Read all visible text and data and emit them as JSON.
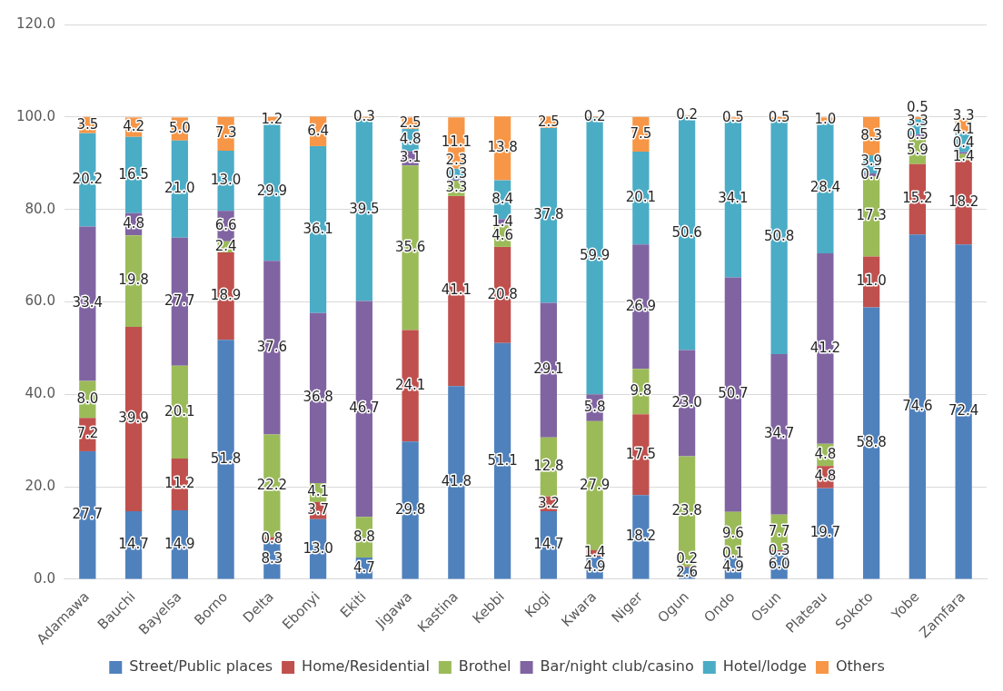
{
  "chart_data": {
    "type": "bar",
    "stacked": true,
    "categories": [
      "Adamawa",
      "Bauchi",
      "Bayelsa",
      "Borno",
      "Delta",
      "Ebonyi",
      "Ekiti",
      "Jigawa",
      "Kastina",
      "Kebbi",
      "Kogi",
      "Kwara",
      "Niger",
      "Ogun",
      "Ondo",
      "Osun",
      "Plateau",
      "Sokoto",
      "Yobe",
      "Zamfara"
    ],
    "series": [
      {
        "name": "Street/Public places",
        "color": "#4f81bd",
        "values": [
          27.7,
          14.7,
          14.9,
          51.8,
          8.3,
          13.0,
          4.7,
          29.8,
          41.8,
          51.1,
          14.7,
          4.9,
          18.2,
          2.6,
          4.9,
          6.0,
          19.7,
          58.8,
          74.6,
          72.4
        ],
        "value_labels": [
          "27.7",
          "14.7",
          "14.9",
          "51.8",
          "8.3",
          "13.0",
          "4.7",
          "29.8",
          "41.8",
          "51.1",
          "14.7",
          "4.9",
          "18.2",
          "2.6",
          "4.9",
          "6.0",
          "19.7",
          "58.8",
          "74.6",
          "72.4"
        ]
      },
      {
        "name": "Home/Residential",
        "color": "#c0504d",
        "values": [
          7.2,
          39.9,
          11.2,
          18.9,
          0.8,
          3.7,
          null,
          24.1,
          41.1,
          20.8,
          3.2,
          1.4,
          17.5,
          0.2,
          0.1,
          0.3,
          4.8,
          11.0,
          15.2,
          18.2
        ],
        "value_labels": [
          "7.2",
          "39.9",
          "11.2",
          "18.9",
          "0.8",
          "3.7",
          null,
          "24.1",
          "41.1",
          "20.8",
          "3.2",
          "1.4",
          "17.5",
          "0.2",
          "0.1",
          "0.3",
          "4.8",
          "11.0",
          "15.2",
          "18.2"
        ]
      },
      {
        "name": "Brothel",
        "color": "#9bbb59",
        "values": [
          8.0,
          19.8,
          20.1,
          2.4,
          22.2,
          4.1,
          8.8,
          35.6,
          3.3,
          4.6,
          12.8,
          27.9,
          9.8,
          23.8,
          9.6,
          7.7,
          4.8,
          17.3,
          5.9,
          1.4
        ],
        "value_labels": [
          "8.0",
          "19.8",
          "20.1",
          "2.4",
          "22.2",
          "4.1",
          "8.8",
          "35.6",
          "3.3",
          "4.6",
          "12.8",
          "27.9",
          "9.8",
          "23.8",
          "9.6",
          "7.7",
          "4.8",
          "17.3",
          "5.9",
          "1.4"
        ]
      },
      {
        "name": "Bar/night club/casino",
        "color": "#8064a2",
        "values": [
          33.4,
          4.8,
          27.7,
          6.6,
          37.6,
          36.8,
          46.7,
          3.1,
          0.3,
          1.4,
          29.1,
          5.8,
          26.9,
          23.0,
          50.7,
          34.7,
          41.2,
          0.7,
          0.5,
          0.4
        ],
        "value_labels": [
          "33.4",
          "4.8",
          "27.7",
          "6.6",
          "37.6",
          "36.8",
          "46.7",
          "3.1",
          "0.3",
          "1.4",
          "29.1",
          "5.8",
          "26.9",
          "23.0",
          "50.7",
          "34.7",
          "41.2",
          "0.7",
          "0.5",
          "0.4"
        ]
      },
      {
        "name": "Hotel/lodge",
        "color": "#4bacc6",
        "values": [
          20.2,
          16.5,
          21.0,
          13.0,
          29.9,
          36.1,
          39.5,
          4.8,
          2.3,
          8.4,
          37.8,
          59.9,
          20.1,
          50.6,
          34.1,
          50.8,
          28.4,
          3.9,
          3.3,
          4.1
        ],
        "value_labels": [
          "20.2",
          "16.5",
          "21.0",
          "13.0",
          "29.9",
          "36.1",
          "39.5",
          "4.8",
          "2.3",
          "8.4",
          "37.8",
          "59.9",
          "20.1",
          "50.6",
          "34.1",
          "50.8",
          "28.4",
          "3.9",
          "3.3",
          "4.1"
        ]
      },
      {
        "name": "Others",
        "color": "#f79646",
        "values": [
          3.5,
          4.2,
          5.0,
          7.3,
          1.2,
          6.4,
          0.3,
          2.5,
          11.1,
          13.8,
          2.5,
          0.2,
          7.5,
          0.2,
          0.5,
          0.5,
          1.0,
          8.3,
          0.5,
          3.3
        ],
        "value_labels": [
          "3.5",
          "4.2",
          "5.0",
          "7.3",
          "1.2",
          "6.4",
          "0.3",
          "2.5",
          "11.1",
          "13.8",
          "2.5",
          "0.2",
          "7.5",
          "0.2",
          "0.5",
          "0.5",
          "1.0",
          "8.3",
          "0.5",
          "3.3"
        ]
      }
    ],
    "ylim": [
      0,
      120
    ],
    "yticks": [
      {
        "value": 0,
        "label": "0.0"
      },
      {
        "value": 20,
        "label": "20.0"
      },
      {
        "value": 40,
        "label": "40.0"
      },
      {
        "value": 60,
        "label": "60.0"
      },
      {
        "value": 80,
        "label": "80.0"
      },
      {
        "value": 100,
        "label": "100.0"
      },
      {
        "value": 120,
        "label": "120.0"
      }
    ],
    "grid": "y",
    "legend": "bottom"
  }
}
